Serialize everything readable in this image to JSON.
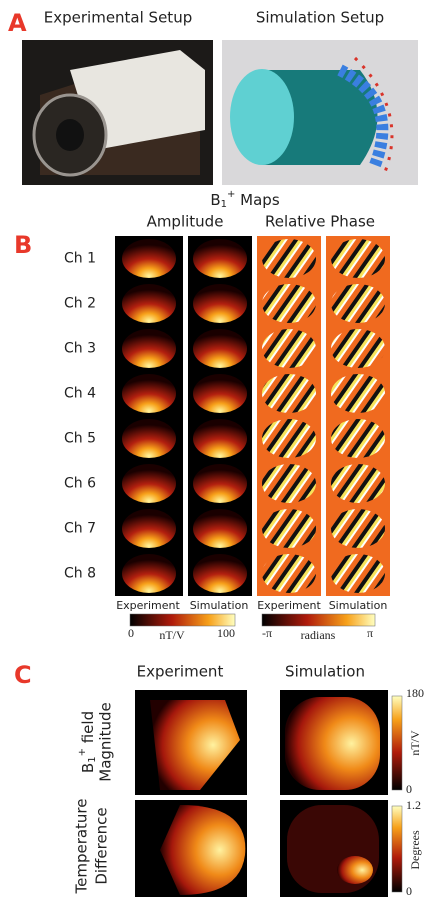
{
  "panel_a": {
    "letter": "A",
    "left_title": "Experimental Setup",
    "right_title": "Simulation Setup"
  },
  "panel_b": {
    "letter": "B",
    "title": {
      "main": "B",
      "sub": "1",
      "sup": "+",
      "rest": " Maps"
    },
    "group_titles": [
      "Amplitude",
      "Relative Phase"
    ],
    "channels": [
      "Ch 1",
      "Ch 2",
      "Ch 3",
      "Ch 4",
      "Ch 5",
      "Ch 6",
      "Ch 7",
      "Ch 8"
    ],
    "column_labels": [
      "Experiment",
      "Simulation",
      "Experiment",
      "Simulation"
    ],
    "amplitude_colorbar": {
      "min": 0,
      "unit": "nT/V",
      "max": 100
    },
    "phase_colorbar": {
      "min": "-π",
      "unit": "radians",
      "max": "π"
    }
  },
  "panel_c": {
    "letter": "C",
    "column_titles": [
      "Experiment",
      "Simulation"
    ],
    "rows": [
      {
        "label_lines": [
          "B",
          "1",
          "+",
          " field",
          "Magnitude"
        ],
        "colorbar": {
          "max": 180,
          "unit": "nT/V",
          "min": 0
        }
      },
      {
        "label_lines": [
          "Temperature",
          "Difference"
        ],
        "colorbar": {
          "max": 1.2,
          "unit": "Degrees",
          "min": 0
        }
      }
    ]
  }
}
